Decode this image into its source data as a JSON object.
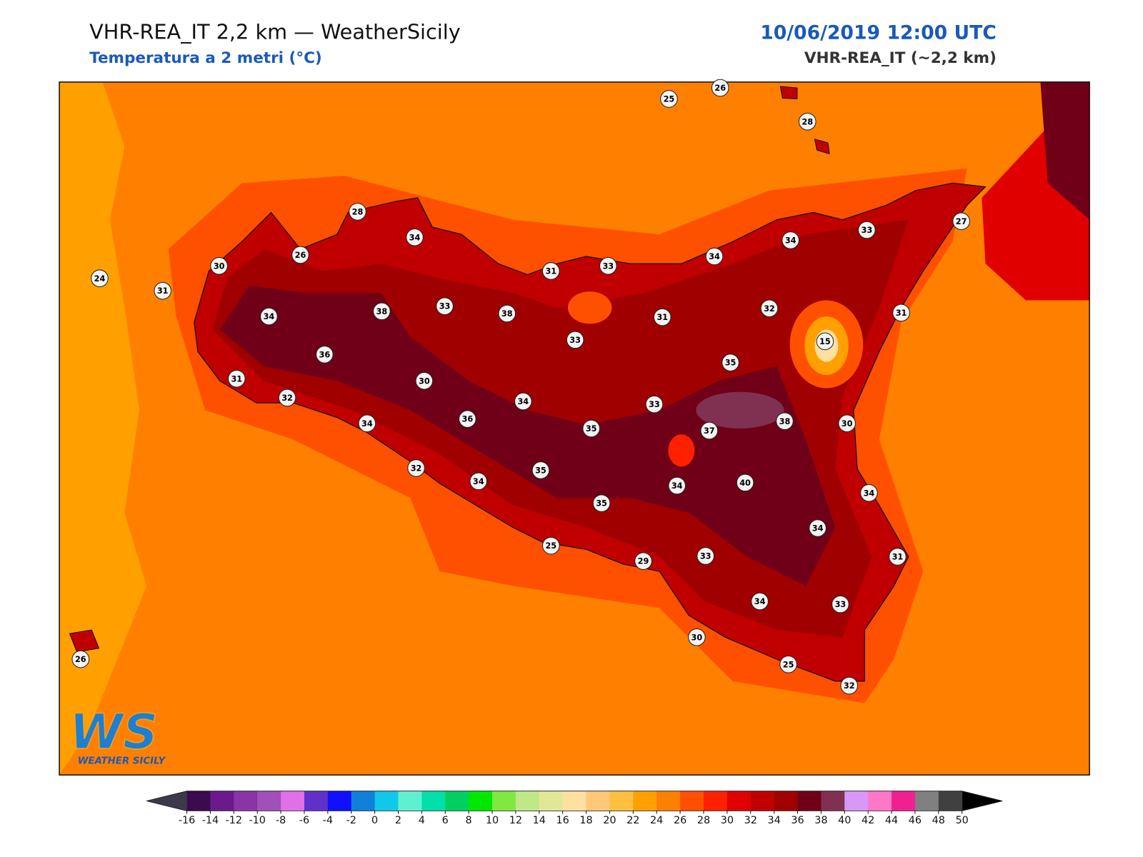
{
  "header": {
    "title": "VHR-REA_IT 2,2 km — WeatherSicily",
    "subtitle": "Temperatura a 2 metri (°C)",
    "datetime": "10/06/2019 12:00 UTC",
    "model": "VHR-REA_IT (~2,2 km)"
  },
  "map": {
    "stations": [
      25,
      26,
      28,
      28,
      34,
      26,
      30,
      24,
      31,
      31,
      33,
      34,
      34,
      33,
      27,
      34,
      38,
      33,
      38,
      31,
      32,
      31,
      33,
      15,
      36,
      31,
      30,
      35,
      32,
      34,
      33,
      34,
      36,
      35,
      37,
      38,
      30,
      32,
      35,
      34,
      34,
      40,
      34,
      35,
      34,
      25,
      29,
      33,
      31,
      34,
      33,
      30,
      26,
      25,
      32
    ]
  },
  "colorbar": {
    "ticks": [
      -16,
      -14,
      -12,
      -10,
      -8,
      -6,
      -4,
      -2,
      0,
      2,
      4,
      6,
      8,
      10,
      12,
      14,
      16,
      18,
      20,
      22,
      24,
      26,
      28,
      30,
      32,
      34,
      36,
      38,
      40,
      42,
      44,
      46,
      48,
      50
    ],
    "colors": [
      "#3b0a4f",
      "#6a1a8a",
      "#8a35a5",
      "#a050b8",
      "#e070e8",
      "#6030c8",
      "#1010ff",
      "#1080d8",
      "#10c8e8",
      "#60f0d0",
      "#00e0a8",
      "#00d060",
      "#00e800",
      "#80e840",
      "#c0e888",
      "#e0e898",
      "#ffe0a0",
      "#ffc878",
      "#ffc040",
      "#ffa000",
      "#ff8000",
      "#ff5000",
      "#ff2000",
      "#e00000",
      "#c00000",
      "#a00000",
      "#700018",
      "#803050",
      "#d898f8",
      "#ff78c8",
      "#f02090",
      "#808080",
      "#404040"
    ],
    "under_color": "#3a3a4a",
    "over_color": "#000000"
  },
  "logo": {
    "mark": "WS",
    "text": "WEATHER SICILY"
  }
}
